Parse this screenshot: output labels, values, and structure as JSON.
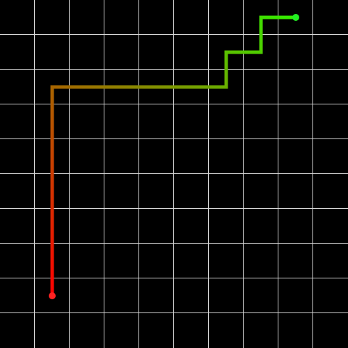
{
  "board": {
    "columns": 10,
    "rows": 10,
    "background_color": "#000000",
    "grid_color": "#d9d9d9"
  },
  "path": {
    "start_color": "#ff0000",
    "end_color": "#33ee00",
    "cells": [
      [
        1,
        8
      ],
      [
        1,
        7
      ],
      [
        1,
        6
      ],
      [
        1,
        5
      ],
      [
        1,
        4
      ],
      [
        1,
        3
      ],
      [
        1,
        2
      ],
      [
        2,
        2
      ],
      [
        3,
        2
      ],
      [
        4,
        2
      ],
      [
        5,
        2
      ],
      [
        6,
        2
      ],
      [
        6,
        1
      ],
      [
        7,
        1
      ],
      [
        7,
        0
      ],
      [
        8,
        0
      ]
    ],
    "start_marker": {
      "cell": [
        1,
        8
      ],
      "color": "#ff2222"
    },
    "end_marker": {
      "cell": [
        8,
        0
      ],
      "color": "#22ee22"
    }
  }
}
